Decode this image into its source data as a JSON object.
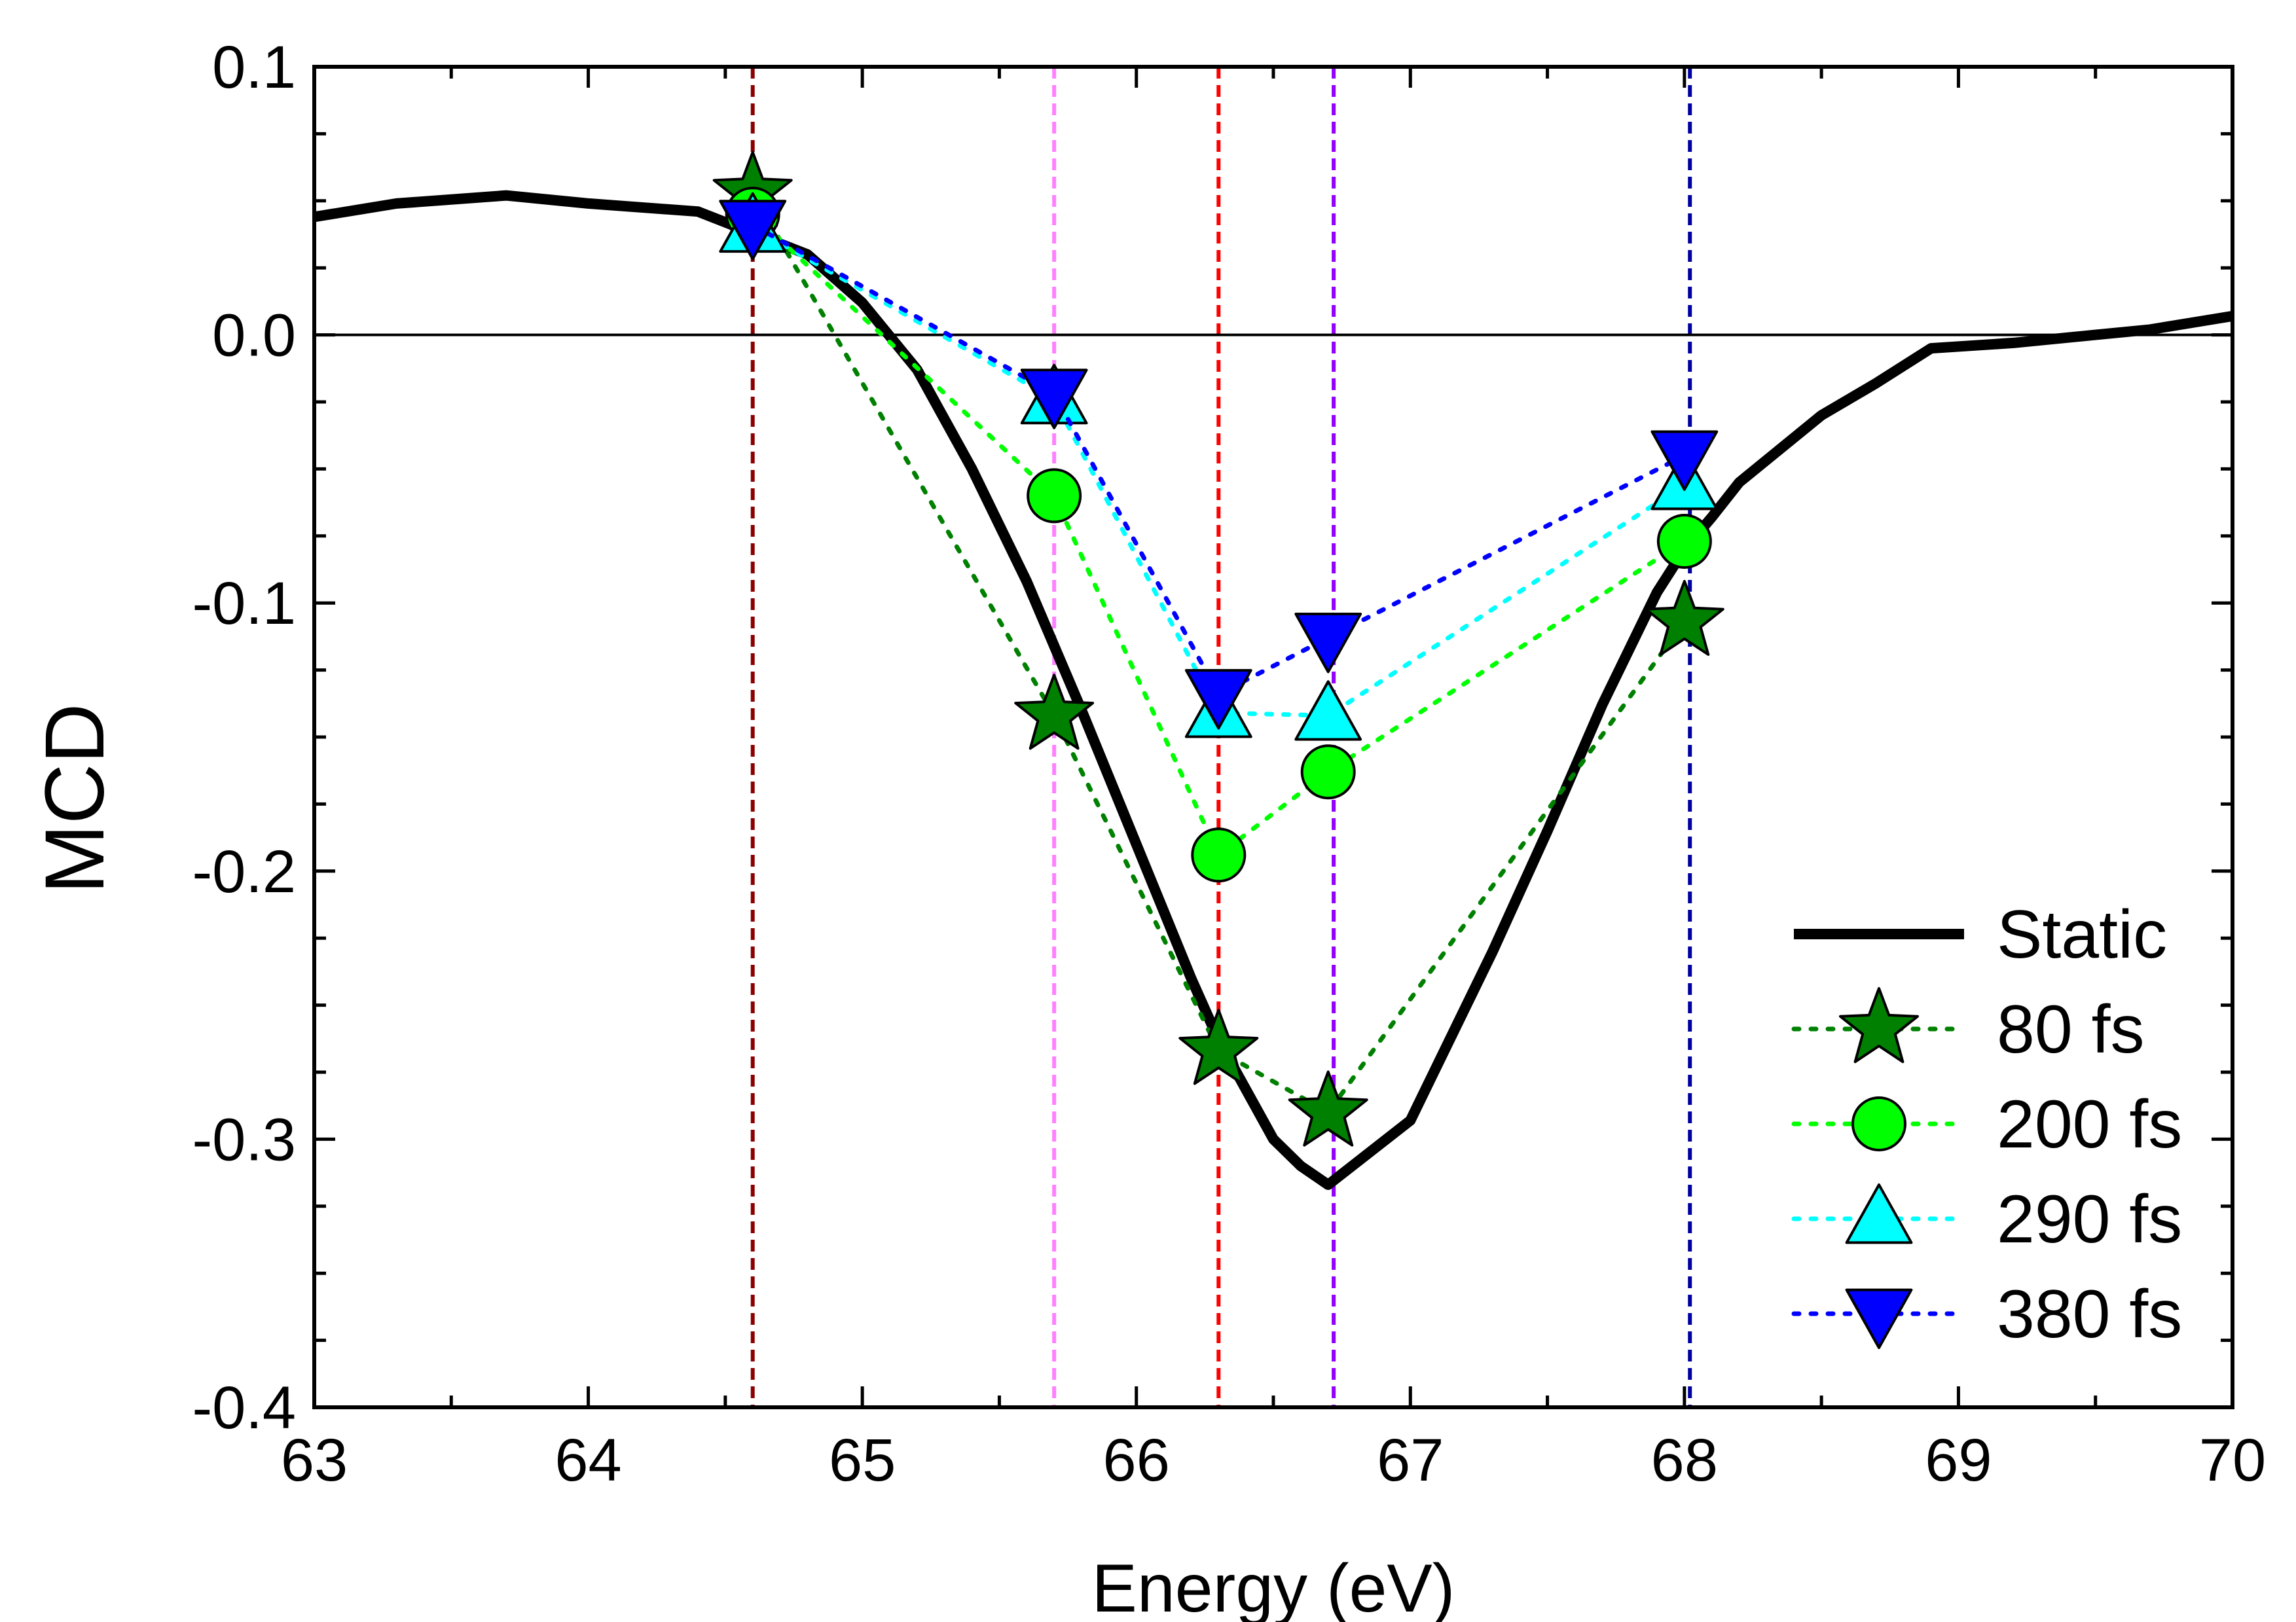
{
  "chart_data": {
    "type": "line",
    "xlabel": "Energy (eV)",
    "ylabel": "MCD",
    "xlim": [
      63,
      70
    ],
    "ylim": [
      -0.4,
      0.1
    ],
    "x_ticks": [
      63,
      64,
      65,
      66,
      67,
      68,
      69,
      70
    ],
    "x_tick_labels": [
      "63",
      "64",
      "65",
      "66",
      "67",
      "68",
      "69",
      "70"
    ],
    "y_ticks": [
      0.1,
      0.0,
      -0.1,
      -0.2,
      -0.3,
      -0.4
    ],
    "y_tick_labels": [
      "0.1",
      "0.0",
      "-0.1",
      "-0.2",
      "-0.3",
      "-0.4"
    ],
    "grid": false,
    "legend_position": "bottom-right",
    "zero_line": 0,
    "reference_lines": [
      {
        "x": 64.6,
        "color": "#8b0000"
      },
      {
        "x": 65.7,
        "color": "#ff80ff"
      },
      {
        "x": 66.3,
        "color": "#ff0000"
      },
      {
        "x": 66.72,
        "color": "#9400ff"
      },
      {
        "x": 68.02,
        "color": "#0000a0"
      }
    ],
    "series": [
      {
        "name": "Static",
        "style": "solid",
        "color": "#000000",
        "marker": "none",
        "x": [
          63.0,
          63.3,
          63.7,
          64.0,
          64.4,
          64.6,
          64.8,
          65.0,
          65.2,
          65.4,
          65.6,
          65.8,
          66.0,
          66.2,
          66.3,
          66.5,
          66.6,
          66.7,
          67.0,
          67.1,
          67.3,
          67.5,
          67.7,
          67.9,
          68.0,
          68.1,
          68.2,
          68.5,
          68.7,
          68.9,
          69.2,
          69.5,
          69.7,
          70.0
        ],
        "y": [
          0.044,
          0.049,
          0.052,
          0.049,
          0.046,
          0.038,
          0.03,
          0.012,
          -0.013,
          -0.05,
          -0.092,
          -0.14,
          -0.19,
          -0.24,
          -0.263,
          -0.3,
          -0.31,
          -0.317,
          -0.293,
          -0.272,
          -0.23,
          -0.185,
          -0.138,
          -0.096,
          -0.08,
          -0.068,
          -0.055,
          -0.03,
          -0.018,
          -0.005,
          -0.003,
          0.0,
          0.002,
          0.007
        ]
      },
      {
        "name": "80 fs",
        "style": "dotted",
        "color": "#008000",
        "marker": "star",
        "marker_fill": "#008000",
        "x": [
          64.6,
          65.7,
          66.3,
          66.7,
          68.0
        ],
        "y": [
          0.053,
          -0.142,
          -0.267,
          -0.29,
          -0.107
        ]
      },
      {
        "name": "200 fs",
        "style": "dotted",
        "color": "#00ff00",
        "marker": "circle",
        "marker_fill": "#00ff00",
        "x": [
          64.6,
          65.7,
          66.3,
          66.7,
          68.0
        ],
        "y": [
          0.045,
          -0.06,
          -0.194,
          -0.163,
          -0.077
        ]
      },
      {
        "name": "290 fs",
        "style": "dotted",
        "color": "#00ffff",
        "marker": "triangle-up",
        "marker_fill": "#00ffff",
        "x": [
          64.6,
          65.7,
          66.3,
          66.7,
          68.0
        ],
        "y": [
          0.04,
          -0.024,
          -0.141,
          -0.142,
          -0.056
        ]
      },
      {
        "name": "380 fs",
        "style": "dotted",
        "color": "#0000ff",
        "marker": "triangle-down",
        "marker_fill": "#0000ff",
        "x": [
          64.6,
          65.7,
          66.3,
          66.7,
          68.0
        ],
        "y": [
          0.041,
          -0.022,
          -0.134,
          -0.113,
          -0.045
        ]
      }
    ]
  }
}
